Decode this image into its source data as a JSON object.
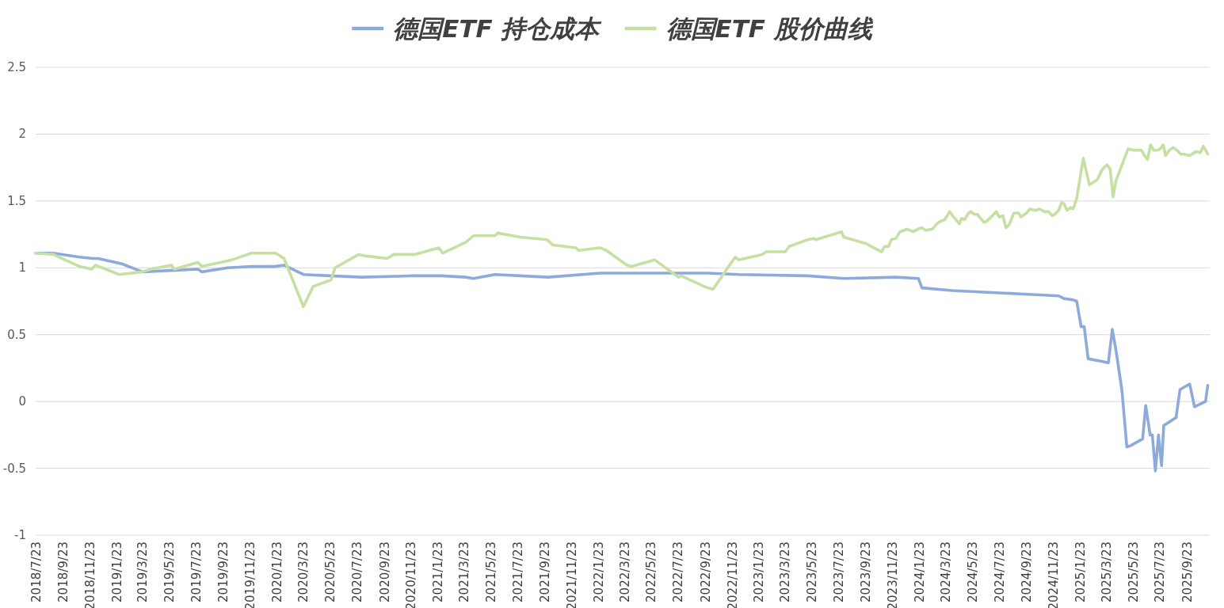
{
  "chart_data": {
    "type": "line",
    "legend": "top",
    "grid": "y",
    "xlim": [
      "2018-07-23",
      "2025-11-10"
    ],
    "ylim": [
      -1,
      2.5
    ],
    "yticks": [
      -1,
      -0.5,
      0,
      0.5,
      1,
      1.5,
      2,
      2.5
    ],
    "xticks": [
      {
        "value": "2018-07-23",
        "label": "2018/7/23"
      },
      {
        "value": "2018-09-23",
        "label": "2018/9/23"
      },
      {
        "value": "2018-11-23",
        "label": "2018/11/23"
      },
      {
        "value": "2019-01-23",
        "label": "2019/1/23"
      },
      {
        "value": "2019-03-23",
        "label": "2019/3/23"
      },
      {
        "value": "2019-05-23",
        "label": "2019/5/23"
      },
      {
        "value": "2019-07-23",
        "label": "2019/7/23"
      },
      {
        "value": "2019-09-23",
        "label": "2019/9/23"
      },
      {
        "value": "2019-11-23",
        "label": "2019/11/23"
      },
      {
        "value": "2020-01-23",
        "label": "2020/1/23"
      },
      {
        "value": "2020-03-23",
        "label": "2020/3/23"
      },
      {
        "value": "2020-05-23",
        "label": "2020/5/23"
      },
      {
        "value": "2020-07-23",
        "label": "2020/7/23"
      },
      {
        "value": "2020-09-23",
        "label": "2020/9/23"
      },
      {
        "value": "2020-11-23",
        "label": "2020/11/23"
      },
      {
        "value": "2021-01-23",
        "label": "2021/1/23"
      },
      {
        "value": "2021-03-23",
        "label": "2021/3/23"
      },
      {
        "value": "2021-05-23",
        "label": "2021/5/23"
      },
      {
        "value": "2021-07-23",
        "label": "2021/7/23"
      },
      {
        "value": "2021-09-23",
        "label": "2021/9/23"
      },
      {
        "value": "2021-11-23",
        "label": "2021/11/23"
      },
      {
        "value": "2022-01-23",
        "label": "2022/1/23"
      },
      {
        "value": "2022-03-23",
        "label": "2022/3/23"
      },
      {
        "value": "2022-05-23",
        "label": "2022/5/23"
      },
      {
        "value": "2022-07-23",
        "label": "2022/7/23"
      },
      {
        "value": "2022-09-23",
        "label": "2022/9/23"
      },
      {
        "value": "2022-11-23",
        "label": "2022/11/23"
      },
      {
        "value": "2023-01-23",
        "label": "2023/1/23"
      },
      {
        "value": "2023-03-23",
        "label": "2023/3/23"
      },
      {
        "value": "2023-05-23",
        "label": "2023/5/23"
      },
      {
        "value": "2023-07-23",
        "label": "2023/7/23"
      },
      {
        "value": "2023-09-23",
        "label": "2023/9/23"
      },
      {
        "value": "2023-11-23",
        "label": "2023/11/23"
      },
      {
        "value": "2024-01-23",
        "label": "2024/1/23"
      },
      {
        "value": "2024-03-23",
        "label": "2024/3/23"
      },
      {
        "value": "2024-05-23",
        "label": "2024/5/23"
      },
      {
        "value": "2024-07-23",
        "label": "2024/7/23"
      },
      {
        "value": "2024-09-23",
        "label": "2024/9/23"
      },
      {
        "value": "2024-11-23",
        "label": "2024/11/23"
      },
      {
        "value": "2025-01-23",
        "label": "2025/1/23"
      },
      {
        "value": "2025-03-23",
        "label": "2025/3/23"
      },
      {
        "value": "2025-05-23",
        "label": "2025/5/23"
      },
      {
        "value": "2025-07-23",
        "label": "2025/7/23"
      },
      {
        "value": "2025-09-23",
        "label": "2025/9/23"
      }
    ],
    "series": [
      {
        "name": "德国ETF 持仓成本",
        "color": "#8eaadb",
        "x": [
          "2018-07-23",
          "2018-09-01",
          "2018-10-31",
          "2018-12-01",
          "2018-12-12",
          "2019-02-04",
          "2019-03-23",
          "2019-05-28",
          "2019-07-27",
          "2019-08-05",
          "2019-10-03",
          "2019-11-26",
          "2020-01-18",
          "2020-02-08",
          "2020-03-23",
          "2020-05-23",
          "2020-08-03",
          "2020-11-26",
          "2021-02-01",
          "2021-03-27",
          "2021-04-14",
          "2021-06-02",
          "2021-07-29",
          "2021-10-01",
          "2022-01-27",
          "2022-06-11",
          "2022-09-28",
          "2022-12-09",
          "2023-05-14",
          "2023-08-04",
          "2023-12-01",
          "2024-01-21",
          "2024-01-29",
          "2024-04-06",
          "2024-06-08",
          "2024-10-06",
          "2024-12-05",
          "2024-12-17",
          "2025-01-07",
          "2025-01-15",
          "2025-01-25",
          "2025-02-01",
          "2025-02-10",
          "2025-03-13",
          "2025-03-28",
          "2025-04-06",
          "2025-04-15",
          "2025-04-28",
          "2025-05-09",
          "2025-05-18",
          "2025-06-14",
          "2025-06-21",
          "2025-07-01",
          "2025-07-06",
          "2025-07-13",
          "2025-07-20",
          "2025-07-27",
          "2025-08-01",
          "2025-08-29",
          "2025-09-07",
          "2025-09-29",
          "2025-10-10",
          "2025-11-04",
          "2025-11-09"
        ],
        "values": [
          1.11,
          1.11,
          1.08,
          1.07,
          1.07,
          1.03,
          0.97,
          0.98,
          0.99,
          0.97,
          1.0,
          1.01,
          1.01,
          1.02,
          0.95,
          0.94,
          0.93,
          0.94,
          0.94,
          0.93,
          0.92,
          0.95,
          0.94,
          0.93,
          0.96,
          0.96,
          0.96,
          0.95,
          0.94,
          0.92,
          0.93,
          0.92,
          0.85,
          0.83,
          0.82,
          0.8,
          0.79,
          0.77,
          0.76,
          0.75,
          0.56,
          0.56,
          0.32,
          0.3,
          0.29,
          0.54,
          0.37,
          0.08,
          -0.34,
          -0.33,
          -0.28,
          -0.03,
          -0.25,
          -0.25,
          -0.52,
          -0.25,
          -0.48,
          -0.18,
          -0.12,
          0.09,
          0.13,
          -0.04,
          0.0,
          0.12
        ]
      },
      {
        "name": "德国ETF 股价曲线",
        "color": "#c6e0a4",
        "x": [
          "2018-07-23",
          "2018-09-01",
          "2018-10-31",
          "2018-11-27",
          "2018-12-06",
          "2019-01-29",
          "2019-03-23",
          "2019-04-10",
          "2019-05-28",
          "2019-06-03",
          "2019-07-27",
          "2019-08-05",
          "2019-10-13",
          "2019-11-26",
          "2020-01-20",
          "2020-02-08",
          "2020-03-23",
          "2020-04-14",
          "2020-05-25",
          "2020-06-03",
          "2020-07-27",
          "2020-08-09",
          "2020-09-29",
          "2020-10-15",
          "2020-12-01",
          "2021-01-25",
          "2021-02-03",
          "2021-03-27",
          "2021-04-14",
          "2021-06-02",
          "2021-06-08",
          "2021-07-29",
          "2021-09-28",
          "2021-10-12",
          "2021-12-03",
          "2021-12-09",
          "2022-01-27",
          "2022-02-10",
          "2022-03-29",
          "2022-04-09",
          "2022-05-31",
          "2022-07-24",
          "2022-07-30",
          "2022-09-28",
          "2022-10-11",
          "2022-11-30",
          "2022-12-08",
          "2023-01-31",
          "2023-02-09",
          "2023-03-24",
          "2023-04-02",
          "2023-05-14",
          "2023-05-28",
          "2023-06-02",
          "2023-07-30",
          "2023-08-04",
          "2023-09-25",
          "2023-10-11",
          "2023-10-29",
          "2023-11-05",
          "2023-11-14",
          "2023-11-20",
          "2023-12-01",
          "2023-12-10",
          "2023-12-19",
          "2023-12-26",
          "2024-01-09",
          "2024-01-20",
          "2024-01-29",
          "2024-02-07",
          "2024-02-22",
          "2024-03-03",
          "2024-03-12",
          "2024-03-21",
          "2024-04-01",
          "2024-04-10",
          "2024-04-23",
          "2024-04-28",
          "2024-05-05",
          "2024-05-14",
          "2024-05-19",
          "2024-05-27",
          "2024-06-03",
          "2024-06-18",
          "2024-06-25",
          "2024-07-07",
          "2024-07-16",
          "2024-07-23",
          "2024-07-31",
          "2024-08-07",
          "2024-08-14",
          "2024-08-25",
          "2024-09-05",
          "2024-09-10",
          "2024-09-23",
          "2024-09-30",
          "2024-10-14",
          "2024-10-22",
          "2024-11-03",
          "2024-11-12",
          "2024-11-20",
          "2024-11-26",
          "2024-12-05",
          "2024-12-12",
          "2024-12-17",
          "2024-12-24",
          "2025-01-01",
          "2025-01-07",
          "2025-01-15",
          "2025-01-30",
          "2025-02-13",
          "2025-03-03",
          "2025-03-13",
          "2025-03-18",
          "2025-03-25",
          "2025-04-01",
          "2025-04-08",
          "2025-04-14",
          "2025-05-12",
          "2025-05-25",
          "2025-06-11",
          "2025-06-18",
          "2025-06-25",
          "2025-07-02",
          "2025-07-09",
          "2025-07-18",
          "2025-07-24",
          "2025-07-31",
          "2025-08-05",
          "2025-08-14",
          "2025-08-22",
          "2025-08-31",
          "2025-09-09",
          "2025-09-16",
          "2025-09-29",
          "2025-10-14",
          "2025-10-23",
          "2025-10-30",
          "2025-11-06",
          "2025-11-09"
        ],
        "values": [
          1.11,
          1.1,
          1.01,
          0.99,
          1.02,
          0.95,
          0.97,
          0.99,
          1.02,
          0.99,
          1.04,
          1.01,
          1.06,
          1.11,
          1.11,
          1.07,
          0.71,
          0.86,
          0.91,
          1.0,
          1.1,
          1.09,
          1.07,
          1.1,
          1.1,
          1.15,
          1.11,
          1.19,
          1.24,
          1.24,
          1.26,
          1.23,
          1.21,
          1.17,
          1.15,
          1.13,
          1.15,
          1.13,
          1.02,
          1.01,
          1.06,
          0.93,
          0.94,
          0.85,
          0.84,
          1.08,
          1.06,
          1.1,
          1.12,
          1.12,
          1.16,
          1.21,
          1.22,
          1.21,
          1.27,
          1.23,
          1.18,
          1.15,
          1.12,
          1.16,
          1.16,
          1.21,
          1.22,
          1.27,
          1.28,
          1.29,
          1.27,
          1.29,
          1.3,
          1.28,
          1.29,
          1.33,
          1.35,
          1.36,
          1.42,
          1.38,
          1.33,
          1.37,
          1.36,
          1.41,
          1.42,
          1.4,
          1.4,
          1.34,
          1.35,
          1.39,
          1.42,
          1.38,
          1.39,
          1.3,
          1.32,
          1.41,
          1.41,
          1.38,
          1.41,
          1.44,
          1.43,
          1.44,
          1.42,
          1.42,
          1.39,
          1.4,
          1.43,
          1.49,
          1.48,
          1.43,
          1.45,
          1.44,
          1.52,
          1.82,
          1.62,
          1.66,
          1.73,
          1.75,
          1.77,
          1.74,
          1.53,
          1.65,
          1.89,
          1.88,
          1.88,
          1.84,
          1.81,
          1.92,
          1.88,
          1.88,
          1.89,
          1.92,
          1.84,
          1.88,
          1.9,
          1.88,
          1.85,
          1.85,
          1.84,
          1.87,
          1.86,
          1.91,
          1.87,
          1.85
        ]
      }
    ]
  }
}
